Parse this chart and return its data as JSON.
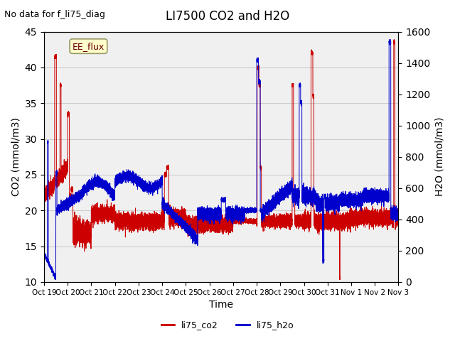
{
  "title": "LI7500 CO2 and H2O",
  "top_left_text": "No data for f_li75_diag",
  "xlabel": "Time",
  "ylabel_left": "CO2 (mmol/m3)",
  "ylabel_right": "H2O (mmol/m3)",
  "ylim_left": [
    10,
    45
  ],
  "ylim_right": [
    0,
    1600
  ],
  "yticks_left": [
    10,
    15,
    20,
    25,
    30,
    35,
    40,
    45
  ],
  "yticks_right": [
    0,
    200,
    400,
    600,
    800,
    1000,
    1200,
    1400,
    1600
  ],
  "xtick_labels": [
    "Oct 19",
    "Oct 20",
    "Oct 21",
    "Oct 22",
    "Oct 23",
    "Oct 24",
    "Oct 25",
    "Oct 26",
    "Oct 27",
    "Oct 28",
    "Oct 29",
    "Oct 30",
    "Oct 31",
    "Nov 1",
    "Nov 2",
    "Nov 3"
  ],
  "legend_labels": [
    "li75_co2",
    "li75_h2o"
  ],
  "legend_colors": [
    "#cc0000",
    "#0000cc"
  ],
  "box_label": "EE_flux",
  "box_color": "#ffffcc",
  "box_edge_color": "#999966",
  "grid_color": "#cccccc",
  "bg_color": "#e8e8e8",
  "plot_bg_color": "#f0f0f0",
  "co2_color": "#cc0000",
  "h2o_color": "#0000cc",
  "n_points": 16000
}
